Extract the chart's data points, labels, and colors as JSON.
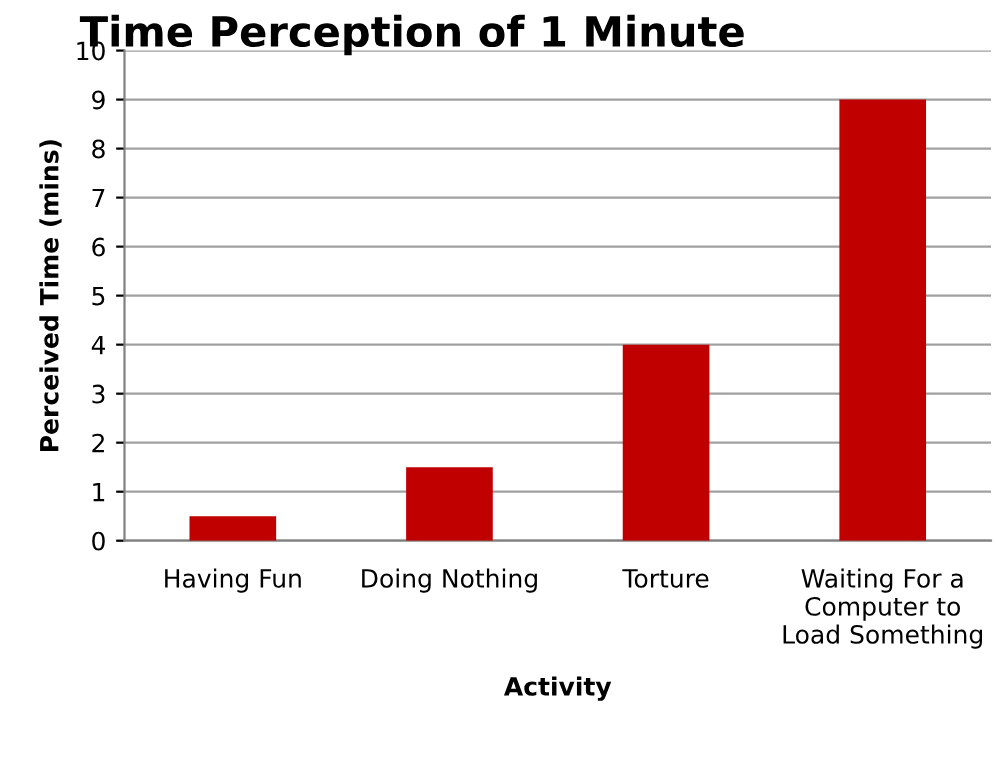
{
  "chart_data": {
    "type": "bar",
    "title": "Time Perception of 1 Minute",
    "xlabel": "Activity",
    "ylabel": "Perceived Time (mins)",
    "categories": [
      "Having Fun",
      "Doing Nothing",
      "Torture",
      "Waiting For a\nComputer to\nLoad Something"
    ],
    "values": [
      0.5,
      1.5,
      4,
      9
    ],
    "color": "#c00000",
    "ylim": [
      0,
      10
    ],
    "yticks": [
      0,
      1,
      2,
      3,
      4,
      5,
      6,
      7,
      8,
      9,
      10
    ],
    "grid": "y",
    "legend": false
  }
}
